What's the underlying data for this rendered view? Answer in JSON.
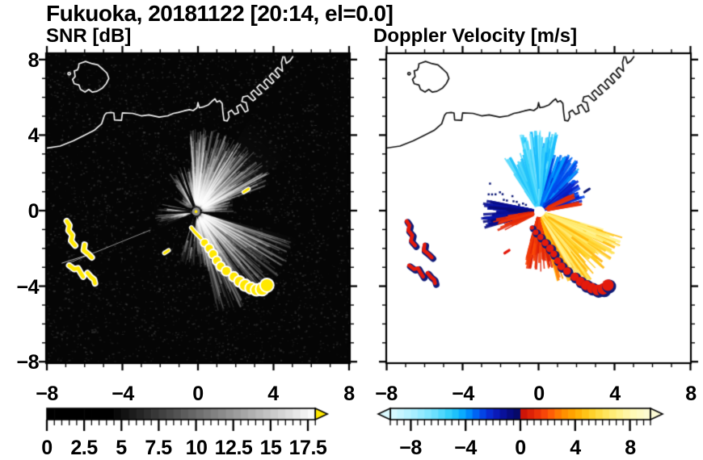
{
  "header": {
    "title": "Fukuoka, 20181122 [20:14, el=0.0]"
  },
  "axes": {
    "y_labels": [
      "8",
      "4",
      "0",
      "−4",
      "−8"
    ],
    "x_labels": [
      "−8",
      "−4",
      "0",
      "4",
      "8"
    ],
    "xlim": [
      -8,
      8
    ],
    "ylim": [
      -8,
      8
    ],
    "major_ticks": [
      -8,
      -4,
      0,
      4,
      8
    ],
    "minor_tick_step": 1
  },
  "coastline": {
    "island": [
      [
        -6.3,
        7.78
      ],
      [
        -5.95,
        7.9
      ],
      [
        -5.6,
        7.78
      ],
      [
        -5.3,
        7.72
      ],
      [
        -5.05,
        7.5
      ],
      [
        -4.82,
        7.28
      ],
      [
        -4.72,
        7.0
      ],
      [
        -4.86,
        6.72
      ],
      [
        -5.05,
        6.5
      ],
      [
        -5.35,
        6.32
      ],
      [
        -5.6,
        6.28
      ],
      [
        -5.78,
        6.42
      ],
      [
        -5.98,
        6.28
      ],
      [
        -6.22,
        6.42
      ],
      [
        -6.3,
        6.65
      ],
      [
        -6.55,
        6.72
      ],
      [
        -6.64,
        6.95
      ],
      [
        -6.5,
        7.1
      ],
      [
        -6.55,
        7.4
      ],
      [
        -6.38,
        7.45
      ],
      [
        -6.32,
        7.6
      ]
    ],
    "islet": [
      -6.82,
      7.25
    ],
    "mainland": [
      [
        -8.1,
        3.3
      ],
      [
        -7.3,
        3.42
      ],
      [
        -6.6,
        3.7
      ],
      [
        -6.0,
        4.0
      ],
      [
        -5.5,
        4.25
      ],
      [
        -5.1,
        4.6
      ],
      [
        -4.95,
        5.05
      ],
      [
        -4.85,
        5.17
      ],
      [
        -4.6,
        5.2
      ],
      [
        -4.45,
        5.17
      ],
      [
        -4.42,
        4.8
      ],
      [
        -4.05,
        4.78
      ],
      [
        -4.0,
        5.18
      ],
      [
        -3.45,
        5.15
      ],
      [
        -3.0,
        5.02
      ],
      [
        -2.6,
        5.07
      ],
      [
        -2.05,
        4.95
      ],
      [
        -1.6,
        5.02
      ],
      [
        -1.3,
        5.15
      ],
      [
        -1.05,
        5.2
      ],
      [
        -0.75,
        5.28
      ],
      [
        -0.45,
        5.35
      ],
      [
        -0.25,
        5.3
      ],
      [
        -0.05,
        5.45
      ],
      [
        0.0,
        5.72
      ],
      [
        0.07,
        5.45
      ],
      [
        0.3,
        5.5
      ],
      [
        0.55,
        5.6
      ],
      [
        0.75,
        5.8
      ],
      [
        0.9,
        5.92
      ],
      [
        1.0,
        5.75
      ],
      [
        1.15,
        5.82
      ],
      [
        1.28,
        5.68
      ],
      [
        1.32,
        5.2
      ],
      [
        1.38,
        4.78
      ],
      [
        1.55,
        4.75
      ],
      [
        1.65,
        4.95
      ],
      [
        1.6,
        5.2
      ],
      [
        1.78,
        5.32
      ],
      [
        1.95,
        5.1
      ],
      [
        2.15,
        5.18
      ],
      [
        2.05,
        5.5
      ],
      [
        2.25,
        5.62
      ],
      [
        2.5,
        5.22
      ],
      [
        2.65,
        5.3
      ],
      [
        2.55,
        5.72
      ],
      [
        2.32,
        5.78
      ],
      [
        2.38,
        6.02
      ],
      [
        2.62,
        6.08
      ],
      [
        2.92,
        5.82
      ],
      [
        3.05,
        5.92
      ],
      [
        2.8,
        6.22
      ],
      [
        2.95,
        6.38
      ],
      [
        3.22,
        6.12
      ],
      [
        3.38,
        6.22
      ],
      [
        3.12,
        6.52
      ],
      [
        3.28,
        6.68
      ],
      [
        3.58,
        6.42
      ],
      [
        3.72,
        6.52
      ],
      [
        3.48,
        6.82
      ],
      [
        3.62,
        6.98
      ],
      [
        3.92,
        6.72
      ],
      [
        4.02,
        6.82
      ],
      [
        3.78,
        7.12
      ],
      [
        3.92,
        7.28
      ],
      [
        4.22,
        7.02
      ],
      [
        4.32,
        7.12
      ],
      [
        4.08,
        7.42
      ],
      [
        4.22,
        7.58
      ],
      [
        4.48,
        7.38
      ],
      [
        4.42,
        7.85
      ],
      [
        4.5,
        8.15
      ]
    ],
    "cape": [
      [
        4.58,
        8.15
      ],
      [
        4.68,
        7.8
      ],
      [
        4.88,
        7.95
      ],
      [
        5.02,
        8.15
      ]
    ]
  },
  "ships": {
    "chain": [
      [
        -0.35,
        -0.9
      ],
      [
        -0.15,
        -1.15
      ],
      [
        0.1,
        -1.4
      ],
      [
        0.35,
        -1.7
      ],
      [
        0.6,
        -2.0
      ],
      [
        0.8,
        -2.3
      ],
      [
        1.0,
        -2.65
      ],
      [
        1.2,
        -2.95
      ],
      [
        1.5,
        -3.2
      ],
      [
        1.9,
        -3.5
      ],
      [
        2.2,
        -3.75
      ],
      [
        2.5,
        -3.95
      ],
      [
        2.8,
        -4.1
      ],
      [
        3.1,
        -4.2
      ],
      [
        3.4,
        -4.15
      ],
      [
        3.65,
        -3.95
      ]
    ],
    "squiggles": [
      [
        [
          -6.95,
          -0.55
        ],
        [
          -6.8,
          -0.78
        ],
        [
          -6.86,
          -1.05
        ],
        [
          -6.65,
          -1.3
        ],
        [
          -6.72,
          -1.6
        ],
        [
          -6.5,
          -1.85
        ]
      ],
      [
        [
          -6.0,
          -1.8
        ],
        [
          -6.05,
          -2.1
        ],
        [
          -5.8,
          -2.3
        ],
        [
          -5.62,
          -2.48
        ]
      ],
      [
        [
          -6.82,
          -2.9
        ],
        [
          -6.55,
          -3.1
        ],
        [
          -6.35,
          -3.05
        ],
        [
          -6.18,
          -3.35
        ],
        [
          -6.08,
          -3.5
        ]
      ],
      [
        [
          -5.85,
          -3.3
        ],
        [
          -5.68,
          -3.5
        ],
        [
          -5.5,
          -3.65
        ],
        [
          -5.45,
          -3.85
        ]
      ]
    ],
    "dashes": [
      [
        [
          -1.78,
          -2.25
        ],
        [
          -1.55,
          -2.1
        ]
      ],
      [
        [
          2.42,
          0.98
        ],
        [
          2.68,
          1.15
        ]
      ]
    ],
    "thin_ray": [
      [
        -7.2,
        -2.78
      ],
      [
        -5.85,
        -2.35
      ]
    ]
  },
  "chart_data": [
    {
      "type": "heatmap",
      "subtype": "radar-ppi",
      "title": "SNR [dB]",
      "xlim": [
        -8,
        8
      ],
      "ylim": [
        -8,
        8
      ],
      "background": "#050505",
      "coast_color": "#f2f2f2",
      "center": [
        -0.1,
        -0.05
      ],
      "center_disk": "#8c8c8c",
      "target_color": "#ffe800",
      "halo_color": "#ffffff",
      "noise_count": 3400,
      "fans": [
        {
          "a0": 20,
          "a1": 95,
          "rmin": 0.8,
          "rmax": 4.4,
          "n": 260,
          "alpha": 0.3
        },
        {
          "a0": 95,
          "a1": 128,
          "rmin": 0.5,
          "rmax": 2.5,
          "n": 80,
          "alpha": 0.26
        },
        {
          "a0": 0,
          "a1": 20,
          "rmin": 0.4,
          "rmax": 2.0,
          "n": 45,
          "alpha": 0.22
        },
        {
          "a0": 167,
          "a1": 200,
          "rmin": 0.4,
          "rmax": 2.2,
          "n": 55,
          "alpha": 0.26
        },
        {
          "a0": 282,
          "a1": 343,
          "rmin": 0.9,
          "rmax": 5.6,
          "n": 230,
          "alpha": 0.24
        },
        {
          "a0": 252,
          "a1": 282,
          "rmin": 0.5,
          "rmax": 3.0,
          "n": 70,
          "alpha": 0.22
        },
        {
          "a0": 128,
          "a1": 150,
          "rmin": 0.4,
          "rmax": 1.4,
          "n": 18,
          "alpha": 0.18
        }
      ],
      "haze": [
        {
          "a0": 20,
          "a1": 95,
          "r": 4.3,
          "a": 0.15
        },
        {
          "a0": 282,
          "a1": 345,
          "r": 5.6,
          "a": 0.12
        },
        {
          "a0": 30,
          "a1": 60,
          "r": 6.0,
          "a": 0.07
        },
        {
          "a0": 95,
          "a1": 128,
          "r": 2.6,
          "a": 0.09
        },
        {
          "a0": 167,
          "a1": 205,
          "r": 2.3,
          "a": 0.09
        },
        {
          "a0": 252,
          "a1": 282,
          "r": 3.0,
          "a": 0.07
        }
      ],
      "shadow_rays": [
        [
          108,
          2.6
        ],
        [
          116,
          2.2
        ],
        [
          172,
          2.0
        ],
        [
          183,
          1.8
        ],
        [
          255,
          1.6
        ],
        [
          263,
          1.9
        ]
      ],
      "long_ray": {
        "angle": 202,
        "r0": 2.6,
        "r1": 7.3
      },
      "colorbar": {
        "min": 0,
        "max": 18,
        "labels": [
          "0",
          "2.5",
          "5",
          "7.5",
          "10",
          "12.5",
          "15",
          "17.5"
        ],
        "label_values": [
          0,
          2.5,
          5,
          7.5,
          10,
          12.5,
          15,
          17.5
        ],
        "segment": 0.5,
        "ramp_start": 4.25,
        "ramp_end": 17.8,
        "over_arrow_color": "#ffe800"
      }
    },
    {
      "type": "heatmap",
      "subtype": "radar-ppi",
      "title": "Doppler Velocity [m/s]",
      "xlim": [
        -8,
        8
      ],
      "ylim": [
        -8,
        8
      ],
      "background": "#ffffff",
      "coast_color": "#141414",
      "center": [
        0.05,
        -0.05
      ],
      "center_disk": "#ffffff",
      "ship_color": "#e41a0c",
      "ship_edge": "#101c78",
      "fans": [
        {
          "a0": 76,
          "a1": 104,
          "rmin": 1.0,
          "rmax": 4.3,
          "n": 190,
          "v": [
            -6.8,
            -4.2
          ]
        },
        {
          "a0": 46,
          "a1": 76,
          "rmin": 0.7,
          "rmax": 3.4,
          "n": 130,
          "v": [
            -4.2,
            -2.4
          ]
        },
        {
          "a0": 14,
          "a1": 46,
          "rmin": 0.5,
          "rmax": 2.6,
          "n": 80,
          "v": [
            -3.2,
            -1.4
          ]
        },
        {
          "a0": 100,
          "a1": 126,
          "rmin": 1.1,
          "rmax": 3.4,
          "n": 36,
          "v": [
            -6.2,
            -4.6
          ]
        },
        {
          "a0": 168,
          "a1": 197,
          "rmin": 0.4,
          "rmax": 3.1,
          "n": 110,
          "v": [
            -1.8,
            -0.5
          ],
          "w": 3.2
        },
        {
          "a0": 186,
          "a1": 208,
          "rmin": 0.6,
          "rmax": 2.5,
          "n": 30,
          "v": [
            0.5,
            1.5
          ]
        },
        {
          "a0": 253,
          "a1": 284,
          "rmin": 0.5,
          "rmax": 3.2,
          "n": 95,
          "v": [
            0.5,
            2.0
          ]
        },
        {
          "a0": 284,
          "a1": 312,
          "rmin": 0.8,
          "rmax": 4.0,
          "n": 140,
          "v": [
            2.2,
            4.6
          ]
        },
        {
          "a0": 298,
          "a1": 344,
          "rmin": 0.9,
          "rmax": 4.6,
          "n": 190,
          "v": [
            4.2,
            7.6
          ]
        },
        {
          "a0": 8,
          "a1": 30,
          "rmin": 1.6,
          "rmax": 2.3,
          "n": 10,
          "v": [
            0.8,
            1.4
          ]
        }
      ],
      "dot_trail": {
        "a0": 150,
        "a1": 162,
        "r0": 0.8,
        "r1": 3.0,
        "n": 14
      },
      "colorbar": {
        "min": -9.5,
        "max": 9.5,
        "labels": [
          "−8",
          "−4",
          "0",
          "4",
          "8"
        ],
        "label_values": [
          -8,
          -4,
          0,
          4,
          8
        ],
        "segment": 0.5,
        "under_arrow": true,
        "over_arrow": true,
        "stops": [
          [
            -9.5,
            "#dcfaff"
          ],
          [
            -8,
            "#b0f0ff"
          ],
          [
            -6.5,
            "#78e4ff"
          ],
          [
            -5,
            "#28ccfa"
          ],
          [
            -4,
            "#00a0ff"
          ],
          [
            -3,
            "#0050f0"
          ],
          [
            -2,
            "#0a1ec8"
          ],
          [
            -1,
            "#080c8c"
          ],
          [
            -0.05,
            "#05085f"
          ],
          [
            0.05,
            "#c81008"
          ],
          [
            1,
            "#e42808"
          ],
          [
            2,
            "#ff5008"
          ],
          [
            3,
            "#ff8800"
          ],
          [
            4,
            "#ffaa00"
          ],
          [
            5,
            "#ffcc1e"
          ],
          [
            6,
            "#ffe150"
          ],
          [
            7,
            "#fff082"
          ],
          [
            8,
            "#fff8af"
          ],
          [
            9.5,
            "#fdfcd7"
          ]
        ]
      }
    }
  ]
}
